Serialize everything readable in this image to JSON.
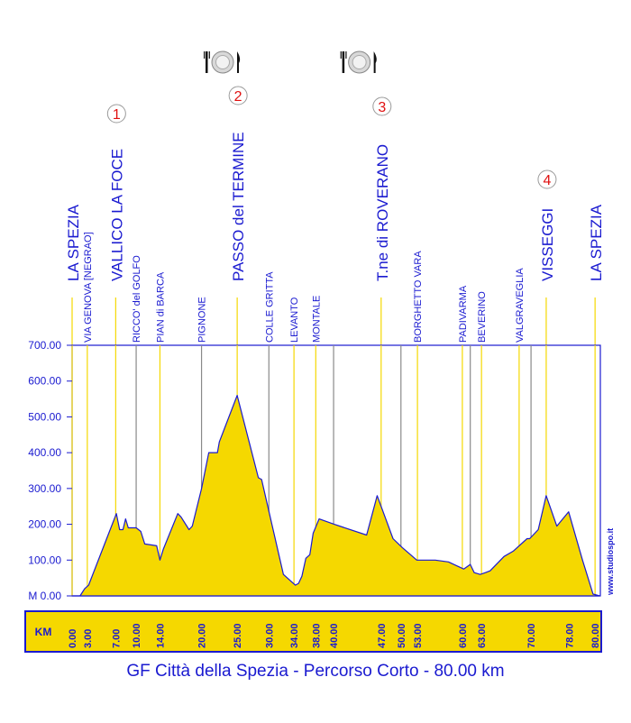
{
  "chart_data": {
    "type": "area",
    "title": "GF Città della Spezia - Percorso Corto - 80.00 km",
    "xlabel": "KM",
    "ylabel": "M",
    "ylim": [
      0,
      700
    ],
    "xlim": [
      0,
      80
    ],
    "yticks": [
      "M 0.00",
      "100.00",
      "200.00",
      "300.00",
      "400.00",
      "500.00",
      "600.00",
      "700.00"
    ],
    "ytick_values": [
      0,
      100,
      200,
      300,
      400,
      500,
      600,
      700
    ],
    "xticks": [
      "0.00",
      "3.00",
      "7.00",
      "10.00",
      "14.00",
      "20.00",
      "25.00",
      "30.00",
      "34.00",
      "38.00",
      "40.00",
      "47.00",
      "50.00",
      "53.00",
      "60.00",
      "63.00",
      "70.00",
      "78.00",
      "80.00"
    ],
    "xtick_values": [
      0,
      2.3,
      6.6,
      9.7,
      13.3,
      19.6,
      25.0,
      29.8,
      33.6,
      36.9,
      39.6,
      46.8,
      49.8,
      52.3,
      59.1,
      62.0,
      69.5,
      75.3,
      79.2
    ],
    "grid": "vertical lines at localities",
    "fill_color": "#f5d800",
    "line_color": "#1a1ad0",
    "profile": {
      "x": [
        0,
        1.2,
        1.9,
        2.5,
        6.7,
        7.2,
        7.7,
        8.1,
        8.5,
        9.7,
        10.4,
        11.0,
        12.8,
        13.3,
        13.8,
        16.0,
        16.5,
        17.7,
        18.2,
        19.6,
        20.7,
        22.0,
        22.3,
        25.0,
        28.2,
        28.7,
        32.0,
        33.8,
        34.3,
        34.8,
        35.4,
        36.0,
        36.5,
        37.4,
        39.7,
        44.6,
        46.2,
        47.7,
        48.6,
        50.0,
        52.2,
        53.7,
        55.0,
        57.0,
        59.3,
        60.3,
        60.9,
        61.8,
        62.6,
        63.3,
        65.4,
        66.8,
        68.9,
        69.3,
        70.6,
        71.8,
        73.4,
        75.2,
        77.3,
        77.8,
        78.9,
        79.9
      ],
      "y": [
        0,
        0,
        20,
        30,
        230,
        185,
        185,
        215,
        190,
        190,
        180,
        145,
        140,
        100,
        130,
        230,
        220,
        185,
        195,
        300,
        400,
        400,
        430,
        560,
        330,
        325,
        60,
        30,
        35,
        55,
        105,
        115,
        175,
        215,
        200,
        170,
        280,
        205,
        160,
        135,
        100,
        100,
        100,
        95,
        75,
        88,
        65,
        60,
        65,
        70,
        110,
        125,
        160,
        160,
        185,
        280,
        195,
        235,
        100,
        70,
        5,
        0
      ]
    },
    "localities": [
      {
        "name": "LA SPEZIA",
        "km": 0.0,
        "kind": "major",
        "color": "#f5d800"
      },
      {
        "name": "VIA GENOVA [NEGRAO]",
        "km": 2.3,
        "kind": "minor",
        "color": "#f5d800"
      },
      {
        "name": "VALLICO LA FOCE",
        "km": 6.6,
        "kind": "major",
        "color": "#f5d800",
        "badge": "1"
      },
      {
        "name": "RICCO' del GOLFO",
        "km": 9.7,
        "kind": "minor",
        "color": "#8a8a8a"
      },
      {
        "name": "PIAN di BARCA",
        "km": 13.3,
        "kind": "minor",
        "color": "#f5d800"
      },
      {
        "name": "PIGNONE",
        "km": 19.6,
        "kind": "minor",
        "color": "#8a8a8a"
      },
      {
        "name": "PASSO del TERMINE",
        "km": 25.0,
        "kind": "major",
        "color": "#f5d800",
        "badge": "2"
      },
      {
        "name": "COLLE GRITTA",
        "km": 29.8,
        "kind": "minor",
        "color": "#8a8a8a"
      },
      {
        "name": "LEVANTO",
        "km": 33.6,
        "kind": "minor",
        "color": "#f5d800"
      },
      {
        "name": "MONTALE",
        "km": 36.9,
        "kind": "minor",
        "color": "#f5d800"
      },
      {
        "name": "",
        "km": 39.6,
        "kind": "minor",
        "color": "#8a8a8a"
      },
      {
        "name": "T.ne di ROVERANO",
        "km": 46.8,
        "kind": "major",
        "color": "#f5d800",
        "badge": "3"
      },
      {
        "name": "",
        "km": 49.8,
        "kind": "minor",
        "color": "#8a8a8a"
      },
      {
        "name": "BORGHETTO VARA",
        "km": 52.3,
        "kind": "minor",
        "color": "#f5d800"
      },
      {
        "name": "PADIVARMA",
        "km": 59.1,
        "kind": "minor",
        "color": "#f5d800"
      },
      {
        "name": "",
        "km": 60.3,
        "kind": "minor",
        "color": "#8a8a8a"
      },
      {
        "name": "BEVERINO",
        "km": 62.0,
        "kind": "minor",
        "color": "#f5d800"
      },
      {
        "name": "VALGRAVEGLIA",
        "km": 67.7,
        "kind": "minor",
        "color": "#f5d800"
      },
      {
        "name": "",
        "km": 69.5,
        "kind": "minor",
        "color": "#8a8a8a"
      },
      {
        "name": "VISSEGGI",
        "km": 71.8,
        "kind": "major",
        "color": "#f5d800",
        "badge": "4"
      },
      {
        "name": "LA SPEZIA",
        "km": 79.2,
        "kind": "major",
        "color": "#f5d800"
      }
    ],
    "food_icons_at_km": [
      22.8,
      43.5
    ],
    "food_icon": "plate-fork-knife-icon",
    "credit": "www.studiospo.it"
  }
}
